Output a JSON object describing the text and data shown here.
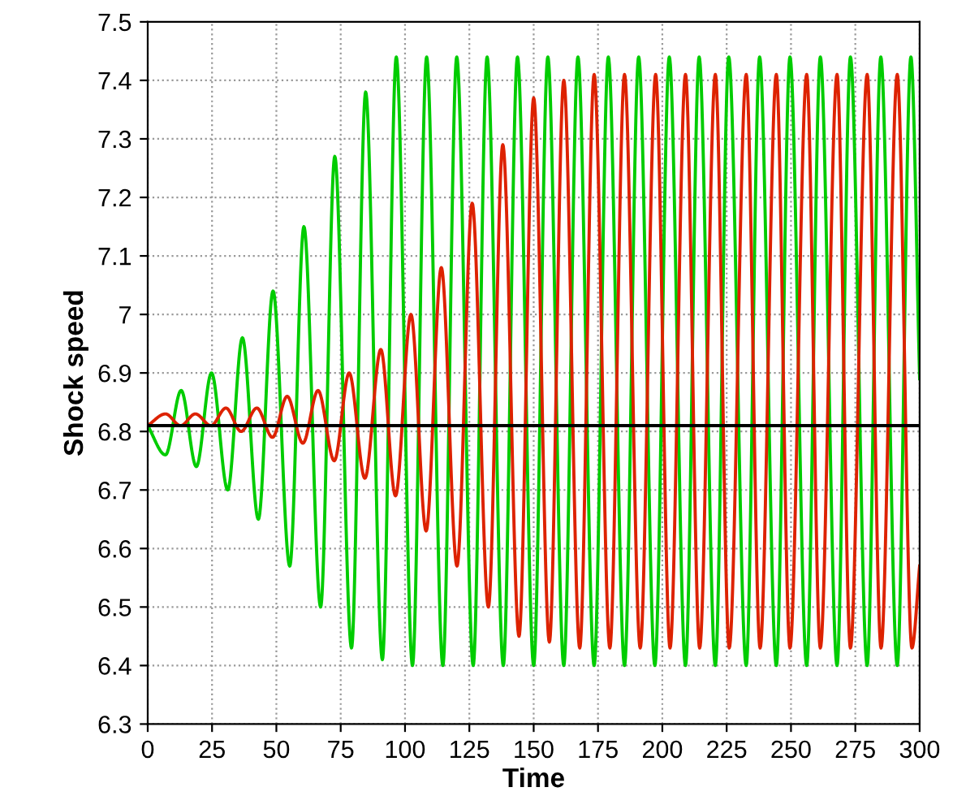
{
  "chart_data": {
    "type": "line",
    "xlabel": "Time",
    "ylabel": "Shock speed",
    "xlim": [
      0,
      300
    ],
    "ylim": [
      6.3,
      7.5
    ],
    "xticks": [
      0,
      25,
      50,
      75,
      100,
      125,
      150,
      175,
      200,
      225,
      250,
      275,
      300
    ],
    "yticks": [
      6.3,
      6.4,
      6.5,
      6.6,
      6.7,
      6.8,
      6.9,
      7,
      7.1,
      7.2,
      7.3,
      7.4,
      7.5
    ],
    "grid": true,
    "legend": false,
    "marker": "none",
    "line_style": "solid",
    "ref_lines": [
      {
        "axis": "y",
        "value": 6.81,
        "color": "#000000",
        "line_style": "solid"
      }
    ],
    "series": [
      {
        "color": "#00cc00",
        "x": [
          0,
          6.9,
          13.0,
          18.9,
          24.8,
          31.1,
          36.8,
          43.0,
          48.7,
          55.2,
          60.7,
          67.2,
          72.7,
          79.2,
          84.7,
          91.2,
          96.6,
          102.9,
          108.4,
          114.7,
          120.1,
          126.5,
          131.9,
          138.2,
          143.7,
          150.0,
          155.5,
          161.7,
          167.2,
          173.5,
          179.0,
          185.3,
          190.8,
          197.1,
          202.7,
          209.0,
          214.3,
          220.6,
          225.8,
          232.6,
          237.8,
          244.3,
          249.6,
          256.1,
          261.4,
          267.9,
          273.1,
          279.6,
          284.9,
          291.3,
          296.6,
          300
        ],
        "values": [
          6.81,
          6.76,
          6.87,
          6.74,
          6.9,
          6.7,
          6.96,
          6.65,
          7.04,
          6.57,
          7.15,
          6.5,
          7.27,
          6.43,
          7.38,
          6.41,
          7.44,
          6.4,
          7.44,
          6.4,
          7.44,
          6.4,
          7.44,
          6.4,
          7.44,
          6.4,
          7.44,
          6.4,
          7.44,
          6.4,
          7.44,
          6.4,
          7.44,
          6.4,
          7.44,
          6.4,
          7.44,
          6.4,
          7.44,
          6.4,
          7.44,
          6.4,
          7.44,
          6.4,
          7.44,
          6.4,
          7.44,
          6.4,
          7.44,
          6.4,
          7.44,
          6.89
        ]
      },
      {
        "color": "#dd2200",
        "x": [
          0,
          6.9,
          12.8,
          18.5,
          24.6,
          30.4,
          36.3,
          42.4,
          48.5,
          54.2,
          60.3,
          66.2,
          72.5,
          78.3,
          84.4,
          90.6,
          96.3,
          102.3,
          108.2,
          114.1,
          120.2,
          126.1,
          132.4,
          138.0,
          144.3,
          150.0,
          156.1,
          161.7,
          167.9,
          173.5,
          179.6,
          185.3,
          191.4,
          197.4,
          203.0,
          209.0,
          214.5,
          220.6,
          226.0,
          232.6,
          238.0,
          244.3,
          249.6,
          256.1,
          261.4,
          267.9,
          273.1,
          279.6,
          285.0,
          291.3,
          297.0,
          300
        ],
        "values": [
          6.81,
          6.83,
          6.81,
          6.83,
          6.81,
          6.84,
          6.8,
          6.84,
          6.79,
          6.86,
          6.78,
          6.87,
          6.75,
          6.9,
          6.72,
          6.94,
          6.69,
          7.0,
          6.63,
          7.08,
          6.57,
          7.19,
          6.5,
          7.29,
          6.45,
          7.37,
          6.44,
          7.4,
          6.43,
          7.41,
          6.43,
          7.41,
          6.43,
          7.41,
          6.43,
          7.41,
          6.43,
          7.41,
          6.43,
          7.41,
          6.43,
          7.41,
          6.43,
          7.41,
          6.43,
          7.41,
          6.43,
          7.41,
          6.43,
          7.41,
          6.43,
          6.57
        ]
      }
    ]
  }
}
